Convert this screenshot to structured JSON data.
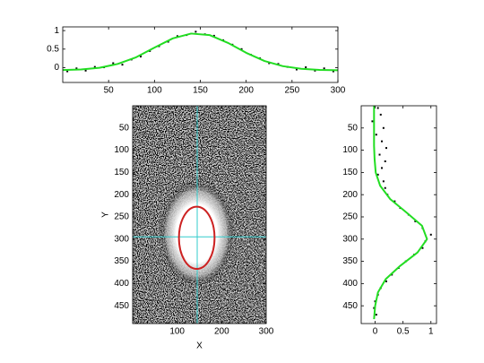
{
  "chart_data": [
    {
      "type": "line",
      "xlim": [
        0,
        300
      ],
      "ylim": [
        -0.4,
        1.1
      ],
      "xticks": [
        50,
        100,
        150,
        200,
        250,
        300
      ],
      "yticks": [
        0,
        0.5,
        1
      ],
      "series": [
        {
          "mode": "markers",
          "color": "#000000",
          "x": [
            5,
            15,
            25,
            35,
            45,
            55,
            65,
            75,
            85,
            95,
            105,
            115,
            125,
            135,
            145,
            155,
            165,
            175,
            185,
            195,
            205,
            215,
            225,
            235,
            245,
            255,
            265,
            275,
            285,
            295
          ],
          "values": [
            -0.1,
            -0.02,
            -0.08,
            0.02,
            0.01,
            0.12,
            0.08,
            0.22,
            0.3,
            0.45,
            0.58,
            0.7,
            0.85,
            0.88,
            0.97,
            0.9,
            0.86,
            0.74,
            0.62,
            0.5,
            0.35,
            0.25,
            0.12,
            0.1,
            0.02,
            -0.05,
            0.01,
            -0.08,
            -0.02,
            -0.1
          ]
        },
        {
          "mode": "line",
          "color": "#22dd22",
          "x": [
            0,
            20,
            40,
            60,
            80,
            100,
            120,
            140,
            160,
            180,
            200,
            220,
            240,
            260,
            280,
            300
          ],
          "values": [
            -0.064,
            -0.05,
            -0.004,
            0.1,
            0.28,
            0.54,
            0.79,
            0.92,
            0.88,
            0.67,
            0.4,
            0.18,
            0.04,
            -0.03,
            -0.06,
            -0.07
          ]
        }
      ]
    },
    {
      "type": "image",
      "xlabel": "X",
      "ylabel": "Y",
      "xlim": [
        0,
        300
      ],
      "ylim": [
        0,
        490
      ],
      "yreverse": true,
      "xticks": [
        100,
        200,
        300
      ],
      "yticks": [
        50,
        100,
        150,
        200,
        250,
        300,
        350,
        400,
        450
      ],
      "crosshair": {
        "x": 145,
        "y": 295,
        "color": "#33cccc"
      },
      "ellipse": {
        "cx": 144,
        "cy": 297,
        "rx": 40,
        "ry": 70,
        "color": "#cc2222"
      }
    },
    {
      "type": "line",
      "orientation": "vertical",
      "xlim": [
        -0.25,
        1.1
      ],
      "ylim": [
        0,
        490
      ],
      "yreverse": true,
      "xticks": [
        0,
        0.5,
        1
      ],
      "yticks": [
        50,
        100,
        150,
        200,
        250,
        300,
        350,
        400,
        450
      ],
      "series": [
        {
          "mode": "markers",
          "color": "#000000",
          "y": [
            5,
            20,
            35,
            50,
            65,
            80,
            95,
            110,
            125,
            140,
            155,
            170,
            185,
            200,
            215,
            230,
            245,
            260,
            275,
            290,
            305,
            320,
            335,
            350,
            365,
            380,
            395,
            410,
            425,
            440,
            455,
            470
          ],
          "values": [
            0.05,
            0.1,
            -0.05,
            0.15,
            0.02,
            0.12,
            0.2,
            0.08,
            0.18,
            0.12,
            0.05,
            0.15,
            0.18,
            0.22,
            0.35,
            0.45,
            0.6,
            0.72,
            0.85,
            1.0,
            0.9,
            0.85,
            0.7,
            0.55,
            0.42,
            0.3,
            0.2,
            0.1,
            0.05,
            0.0,
            -0.02,
            0.02
          ]
        },
        {
          "mode": "line",
          "color": "#22dd22",
          "y": [
            0,
            30,
            60,
            90,
            120,
            150,
            180,
            210,
            240,
            270,
            300,
            330,
            360,
            390,
            420,
            450,
            480
          ],
          "values": [
            -0.02,
            -0.02,
            -0.02,
            -0.02,
            -0.01,
            0.01,
            0.09,
            0.27,
            0.56,
            0.84,
            0.93,
            0.76,
            0.45,
            0.19,
            0.05,
            0.0,
            -0.02
          ]
        }
      ]
    }
  ]
}
